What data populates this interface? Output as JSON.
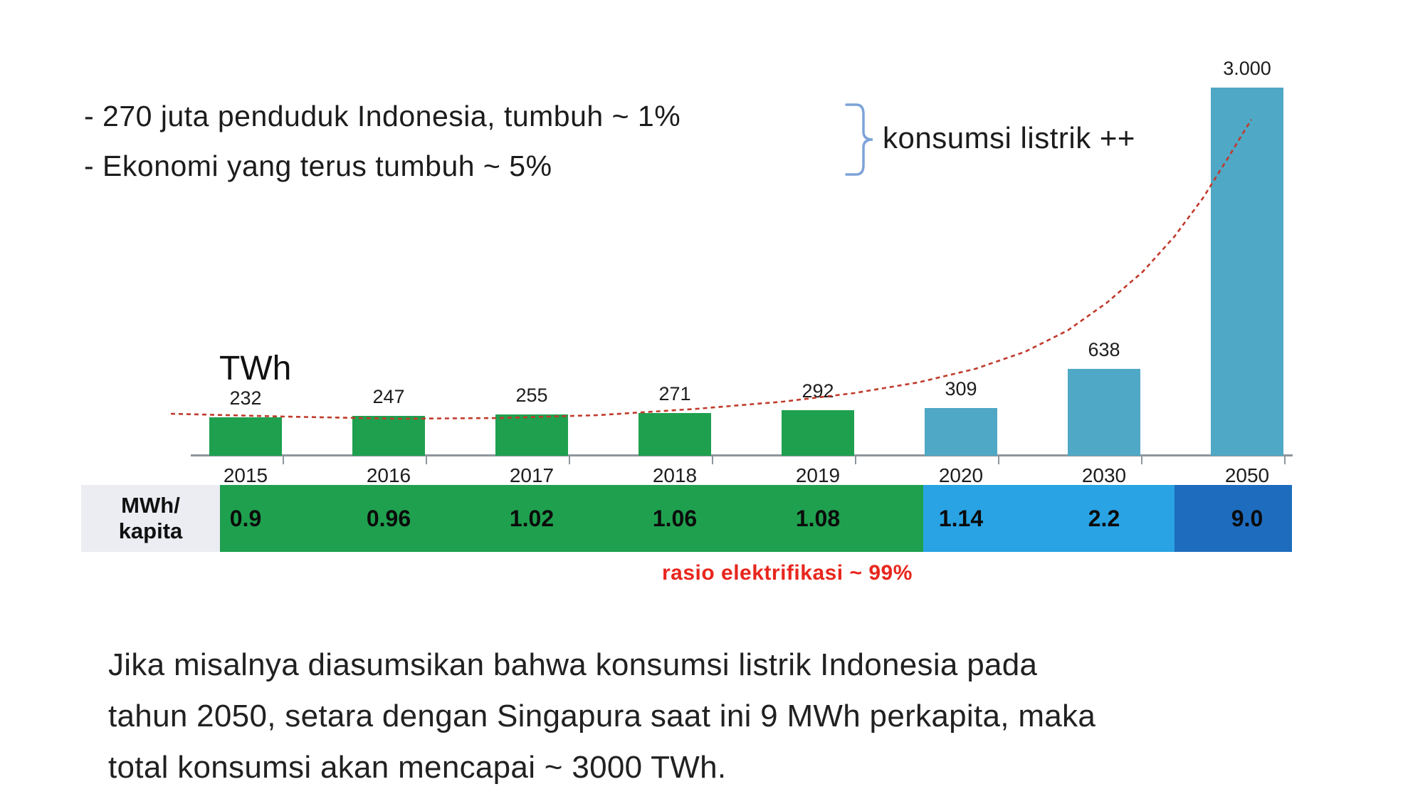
{
  "slide": {
    "bullets": [
      "- 270 juta penduduk Indonesia, tumbuh ~ 1%",
      "- Ekonomi yang terus tumbuh ~ 5%"
    ],
    "brace_note": "konsumsi listrik ++",
    "footer_lines": [
      "Jika misalnya diasumsikan bahwa konsumsi listrik Indonesia pada",
      "tahun 2050, setara dengan Singapura saat ini 9 MWh perkapita, maka",
      "total konsumsi akan mencapai ~ 3000 TWh."
    ]
  },
  "chart_data": {
    "type": "bar",
    "title": "TWh",
    "ylabel": "TWh",
    "ylim": [
      0,
      3000
    ],
    "grid": false,
    "legend": "none",
    "categories": [
      "2015",
      "2016",
      "2017",
      "2018",
      "2019",
      "2020",
      "2030",
      "2050"
    ],
    "values": [
      232,
      247,
      255,
      271,
      292,
      309,
      638,
      3000
    ],
    "value_labels": [
      "232",
      "247",
      "255",
      "271",
      "292",
      "309",
      "638",
      "3.000"
    ],
    "bar_color_keys": [
      "green",
      "green",
      "green",
      "green",
      "green",
      "teal",
      "teal",
      "teal"
    ],
    "trend_line": {
      "style": "dashed",
      "color_key": "trend_red",
      "shape": "exponential growth from 2015 level to 2050 bar top"
    },
    "per_capita_row": {
      "label_lines": [
        "MWh/",
        "kapita"
      ],
      "values": [
        "0.9",
        "0.96",
        "1.02",
        "1.06",
        "1.08",
        "1.14",
        "2.2",
        "9.0"
      ],
      "segment_color_keys": [
        "band_green",
        "band_lightblue",
        "band_darkblue"
      ],
      "segment_category_spans": [
        [
          0,
          4
        ],
        [
          5,
          6
        ],
        [
          7,
          7
        ]
      ]
    },
    "caption": "rasio elektrifikasi  ~ 99%"
  },
  "colors": {
    "green": "#1fa04f",
    "teal": "#4fa8c5",
    "band_green": "#1fa04f",
    "band_lightblue": "#29a3e3",
    "band_darkblue": "#1e6cbe",
    "trend_red": "#c03a2b",
    "caption_red": "#e8261d",
    "brace_blue": "#7da3d8",
    "axis_gray": "#8e969c",
    "label_cell_gray": "#ebedf3"
  }
}
